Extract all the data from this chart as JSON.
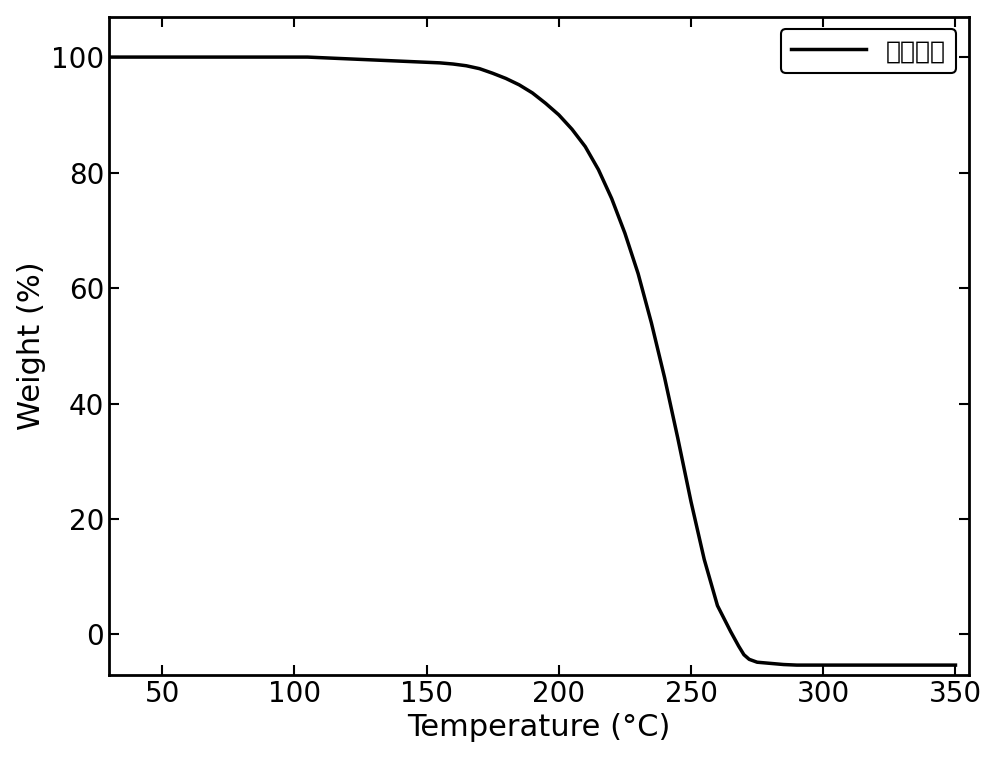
{
  "title": "",
  "xlabel": "Temperature (°C)",
  "ylabel": "Weight (%)",
  "legend_label": "苯甲酰肼",
  "line_color": "#000000",
  "line_width": 2.5,
  "background_color": "#ffffff",
  "xlim": [
    30,
    355
  ],
  "ylim": [
    -7,
    107
  ],
  "xticks": [
    50,
    100,
    150,
    200,
    250,
    300,
    350
  ],
  "yticks": [
    0,
    20,
    40,
    60,
    80,
    100
  ],
  "x": [
    30,
    35,
    40,
    45,
    50,
    55,
    60,
    65,
    70,
    75,
    80,
    85,
    90,
    95,
    100,
    105,
    110,
    115,
    120,
    125,
    130,
    135,
    140,
    145,
    150,
    155,
    160,
    165,
    170,
    175,
    180,
    185,
    190,
    195,
    200,
    205,
    210,
    215,
    220,
    225,
    230,
    235,
    240,
    245,
    250,
    255,
    260,
    265,
    268,
    270,
    272,
    275,
    280,
    285,
    290,
    295,
    300,
    310,
    320,
    330,
    340,
    350
  ],
  "y": [
    100.0,
    100.0,
    100.0,
    100.0,
    100.0,
    100.0,
    100.0,
    100.0,
    100.0,
    100.0,
    100.0,
    100.0,
    100.0,
    100.0,
    100.0,
    100.0,
    99.9,
    99.8,
    99.7,
    99.6,
    99.5,
    99.4,
    99.3,
    99.2,
    99.1,
    99.0,
    98.8,
    98.5,
    98.0,
    97.2,
    96.3,
    95.2,
    93.8,
    92.0,
    90.0,
    87.5,
    84.5,
    80.5,
    75.5,
    69.5,
    62.5,
    54.0,
    44.5,
    34.0,
    23.0,
    13.0,
    5.0,
    0.5,
    -2.0,
    -3.5,
    -4.3,
    -4.8,
    -5.0,
    -5.2,
    -5.3,
    -5.3,
    -5.3,
    -5.3,
    -5.3,
    -5.3,
    -5.3,
    -5.3
  ],
  "xlabel_fontsize": 22,
  "ylabel_fontsize": 22,
  "tick_fontsize": 20,
  "legend_fontsize": 18,
  "spine_linewidth": 2.0
}
